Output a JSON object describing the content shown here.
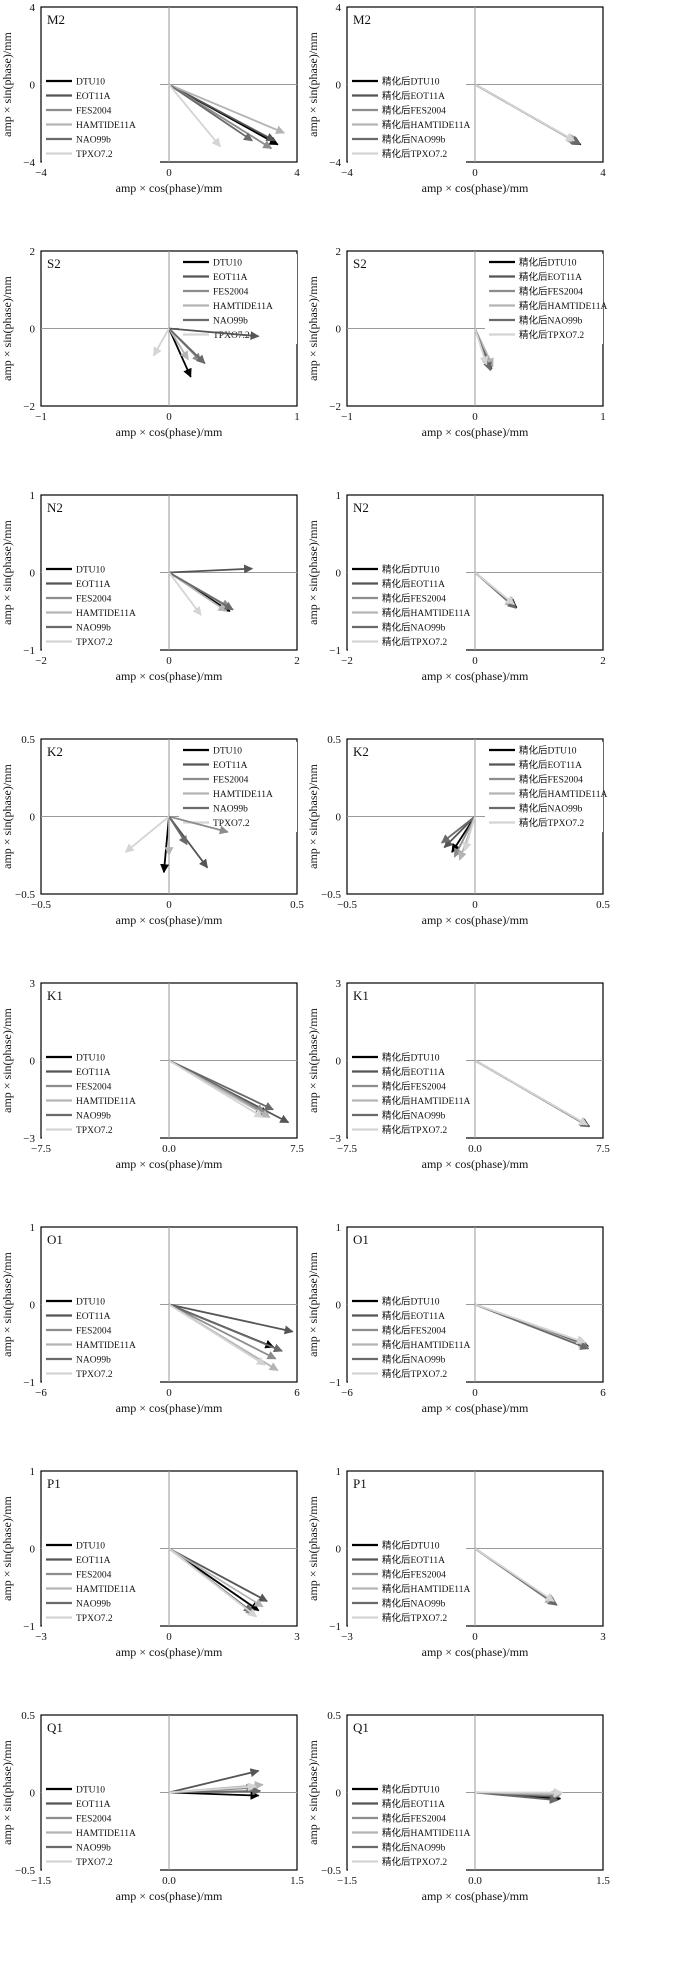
{
  "figure": {
    "y_label": "amp × sin(phase)/mm",
    "x_label": "amp × cos(phase)/mm"
  },
  "legends": {
    "original": [
      "DTU10",
      "EOT11A",
      "FES2004",
      "HAMTIDE11A",
      "NAO99b",
      "TPXO7.2"
    ],
    "refined": [
      "精化后DTU10",
      "精化后EOT11A",
      "精化后FES2004",
      "精化后HAMTIDE11A",
      "精化后NAO99b",
      "精化后TPXO7.2"
    ]
  },
  "series_colors": [
    "#000000",
    "#555555",
    "#8c8c8c",
    "#b4b4b4",
    "#6a6a6a",
    "#d4d4d4"
  ],
  "chart_data": [
    {
      "type": "scatter",
      "variant": "original",
      "title": "M2",
      "xlim": [
        -4,
        4
      ],
      "ylim": [
        -4,
        4
      ],
      "xticks": [
        "−4",
        "0",
        "4"
      ],
      "yticks": [
        "4",
        "0",
        "−4"
      ],
      "legend_position": "lower-left",
      "series": [
        {
          "name": "DTU10",
          "x": 3.4,
          "y": -3.1
        },
        {
          "name": "EOT11A",
          "x": 3.3,
          "y": -2.9
        },
        {
          "name": "FES2004",
          "x": 3.2,
          "y": -3.3
        },
        {
          "name": "HAMTIDE11A",
          "x": 3.6,
          "y": -2.5
        },
        {
          "name": "NAO99b",
          "x": 2.6,
          "y": -2.9
        },
        {
          "name": "TPXO7.2",
          "x": 1.6,
          "y": -3.2
        }
      ]
    },
    {
      "type": "scatter",
      "variant": "refined",
      "title": "M2",
      "xlim": [
        -4,
        4
      ],
      "ylim": [
        -4,
        4
      ],
      "xticks": [
        "−4",
        "0",
        "4"
      ],
      "yticks": [
        "4",
        "0",
        "−4"
      ],
      "legend_position": "lower-left",
      "series": [
        {
          "name": "精化后DTU10",
          "x": 3.3,
          "y": -3.1
        },
        {
          "name": "精化后EOT11A",
          "x": 3.25,
          "y": -3.05
        },
        {
          "name": "精化后FES2004",
          "x": 3.2,
          "y": -3.0
        },
        {
          "name": "精化后HAMTIDE11A",
          "x": 3.15,
          "y": -2.95
        },
        {
          "name": "精化后NAO99b",
          "x": 3.28,
          "y": -3.08
        },
        {
          "name": "精化后TPXO7.2",
          "x": 3.1,
          "y": -2.9
        }
      ]
    },
    {
      "type": "scatter",
      "variant": "original",
      "title": "S2",
      "xlim": [
        -1,
        1
      ],
      "ylim": [
        -2,
        2
      ],
      "xticks": [
        "−1",
        "0",
        "1"
      ],
      "yticks": [
        "2",
        "0",
        "−2"
      ],
      "legend_position": "upper-right",
      "series": [
        {
          "name": "DTU10",
          "x": 0.17,
          "y": -1.25
        },
        {
          "name": "EOT11A",
          "x": 0.7,
          "y": -0.2
        },
        {
          "name": "FES2004",
          "x": 0.25,
          "y": -0.85
        },
        {
          "name": "HAMTIDE11A",
          "x": 0.15,
          "y": -0.8
        },
        {
          "name": "NAO99b",
          "x": 0.28,
          "y": -0.9
        },
        {
          "name": "TPXO7.2",
          "x": -0.12,
          "y": -0.7
        }
      ]
    },
    {
      "type": "scatter",
      "variant": "refined",
      "title": "S2",
      "xlim": [
        -1,
        1
      ],
      "ylim": [
        -2,
        2
      ],
      "xticks": [
        "−1",
        "0",
        "1"
      ],
      "yticks": [
        "2",
        "0",
        "−2"
      ],
      "legend_position": "upper-right",
      "series": [
        {
          "name": "精化后DTU10",
          "x": 0.1,
          "y": -0.95
        },
        {
          "name": "精化后EOT11A",
          "x": 0.13,
          "y": -1.05
        },
        {
          "name": "精化后FES2004",
          "x": 0.11,
          "y": -1.0
        },
        {
          "name": "精化后HAMTIDE11A",
          "x": 0.14,
          "y": -0.98
        },
        {
          "name": "精化后NAO99b",
          "x": 0.12,
          "y": -1.08
        },
        {
          "name": "精化后TPXO7.2",
          "x": 0.09,
          "y": -0.93
        }
      ]
    },
    {
      "type": "scatter",
      "variant": "original",
      "title": "N2",
      "xlim": [
        -2,
        2
      ],
      "ylim": [
        -1,
        1
      ],
      "xticks": [
        "−2",
        "0",
        "2"
      ],
      "yticks": [
        "1",
        "0",
        "−1"
      ],
      "legend_position": "lower-left",
      "series": [
        {
          "name": "DTU10",
          "x": 0.95,
          "y": -0.5
        },
        {
          "name": "EOT11A",
          "x": 1.3,
          "y": 0.05
        },
        {
          "name": "FES2004",
          "x": 0.95,
          "y": -0.45
        },
        {
          "name": "HAMTIDE11A",
          "x": 0.9,
          "y": -0.5
        },
        {
          "name": "NAO99b",
          "x": 1.0,
          "y": -0.48
        },
        {
          "name": "TPXO7.2",
          "x": 0.5,
          "y": -0.55
        }
      ]
    },
    {
      "type": "scatter",
      "variant": "refined",
      "title": "N2",
      "xlim": [
        -2,
        2
      ],
      "ylim": [
        -1,
        1
      ],
      "xticks": [
        "−2",
        "0",
        "2"
      ],
      "yticks": [
        "1",
        "0",
        "−1"
      ],
      "legend_position": "lower-left",
      "series": [
        {
          "name": "精化后DTU10",
          "x": 0.65,
          "y": -0.45
        },
        {
          "name": "精化后EOT11A",
          "x": 0.63,
          "y": -0.43
        },
        {
          "name": "精化后FES2004",
          "x": 0.62,
          "y": -0.42
        },
        {
          "name": "精化后HAMTIDE11A",
          "x": 0.6,
          "y": -0.44
        },
        {
          "name": "精化后NAO99b",
          "x": 0.64,
          "y": -0.46
        },
        {
          "name": "精化后TPXO7.2",
          "x": 0.61,
          "y": -0.41
        }
      ]
    },
    {
      "type": "scatter",
      "variant": "original",
      "title": "K2",
      "xlim": [
        -0.5,
        0.5
      ],
      "ylim": [
        -0.5,
        0.5
      ],
      "xticks": [
        "−0.5",
        "0",
        "0.5"
      ],
      "yticks": [
        "0.5",
        "0",
        "−0.5"
      ],
      "legend_position": "upper-right",
      "series": [
        {
          "name": "DTU10",
          "x": -0.02,
          "y": -0.36
        },
        {
          "name": "EOT11A",
          "x": 0.15,
          "y": -0.33
        },
        {
          "name": "FES2004",
          "x": 0.23,
          "y": -0.1
        },
        {
          "name": "HAMTIDE11A",
          "x": 0.0,
          "y": -0.25
        },
        {
          "name": "NAO99b",
          "x": 0.07,
          "y": -0.18
        },
        {
          "name": "TPXO7.2",
          "x": -0.17,
          "y": -0.23
        }
      ]
    },
    {
      "type": "scatter",
      "variant": "refined",
      "title": "K2",
      "xlim": [
        -0.5,
        0.5
      ],
      "ylim": [
        -0.5,
        0.5
      ],
      "xticks": [
        "−0.5",
        "0",
        "0.5"
      ],
      "yticks": [
        "0.5",
        "0",
        "−0.5"
      ],
      "legend_position": "upper-right",
      "series": [
        {
          "name": "精化后DTU10",
          "x": -0.09,
          "y": -0.23
        },
        {
          "name": "精化后EOT11A",
          "x": -0.12,
          "y": -0.2
        },
        {
          "name": "精化后FES2004",
          "x": -0.08,
          "y": -0.26
        },
        {
          "name": "精化后HAMTIDE11A",
          "x": -0.06,
          "y": -0.28
        },
        {
          "name": "精化后NAO99b",
          "x": -0.13,
          "y": -0.17
        },
        {
          "name": "精化后TPXO7.2",
          "x": -0.04,
          "y": -0.22
        }
      ]
    },
    {
      "type": "scatter",
      "variant": "original",
      "title": "K1",
      "xlim": [
        -7.5,
        7.5
      ],
      "ylim": [
        -3,
        3
      ],
      "xticks": [
        "−7.5",
        "0.0",
        "7.5"
      ],
      "yticks": [
        "3",
        "0",
        "−3"
      ],
      "legend_position": "lower-left",
      "series": [
        {
          "name": "DTU10",
          "x": 5.8,
          "y": -2.1
        },
        {
          "name": "EOT11A",
          "x": 7.0,
          "y": -2.4
        },
        {
          "name": "FES2004",
          "x": 5.6,
          "y": -2.0
        },
        {
          "name": "HAMTIDE11A",
          "x": 5.9,
          "y": -2.2
        },
        {
          "name": "NAO99b",
          "x": 6.1,
          "y": -1.9
        },
        {
          "name": "TPXO7.2",
          "x": 5.5,
          "y": -2.2
        }
      ]
    },
    {
      "type": "scatter",
      "variant": "refined",
      "title": "K1",
      "xlim": [
        -7.5,
        7.5
      ],
      "ylim": [
        -3,
        3
      ],
      "xticks": [
        "−7.5",
        "0.0",
        "7.5"
      ],
      "yticks": [
        "3",
        "0",
        "−3"
      ],
      "legend_position": "lower-left",
      "series": [
        {
          "name": "精化后DTU10",
          "x": 6.7,
          "y": -2.55
        },
        {
          "name": "精化后EOT11A",
          "x": 6.65,
          "y": -2.53
        },
        {
          "name": "精化后FES2004",
          "x": 6.6,
          "y": -2.5
        },
        {
          "name": "精化后HAMTIDE11A",
          "x": 6.62,
          "y": -2.52
        },
        {
          "name": "精化后NAO99b",
          "x": 6.68,
          "y": -2.56
        },
        {
          "name": "精化后TPXO7.2",
          "x": 6.58,
          "y": -2.49
        }
      ]
    },
    {
      "type": "scatter",
      "variant": "original",
      "title": "O1",
      "xlim": [
        -6,
        6
      ],
      "ylim": [
        -1,
        1
      ],
      "xticks": [
        "−6",
        "0",
        "6"
      ],
      "yticks": [
        "1",
        "0",
        "−1"
      ],
      "legend_position": "lower-left",
      "series": [
        {
          "name": "DTU10",
          "x": 4.9,
          "y": -0.55
        },
        {
          "name": "EOT11A",
          "x": 5.8,
          "y": -0.35
        },
        {
          "name": "FES2004",
          "x": 5.0,
          "y": -0.7
        },
        {
          "name": "HAMTIDE11A",
          "x": 5.1,
          "y": -0.85
        },
        {
          "name": "NAO99b",
          "x": 5.3,
          "y": -0.6
        },
        {
          "name": "TPXO7.2",
          "x": 4.5,
          "y": -0.78
        }
      ]
    },
    {
      "type": "scatter",
      "variant": "refined",
      "title": "O1",
      "xlim": [
        -6,
        6
      ],
      "ylim": [
        -1,
        1
      ],
      "xticks": [
        "−6",
        "0",
        "6"
      ],
      "yticks": [
        "1",
        "0",
        "−1"
      ],
      "legend_position": "lower-left",
      "series": [
        {
          "name": "精化后DTU10",
          "x": 5.3,
          "y": -0.54
        },
        {
          "name": "精化后EOT11A",
          "x": 5.25,
          "y": -0.52
        },
        {
          "name": "精化后FES2004",
          "x": 5.2,
          "y": -0.5
        },
        {
          "name": "精化后HAMTIDE11A",
          "x": 5.28,
          "y": -0.55
        },
        {
          "name": "精化后NAO99b",
          "x": 5.32,
          "y": -0.57
        },
        {
          "name": "精化后TPXO7.2",
          "x": 5.15,
          "y": -0.49
        }
      ]
    },
    {
      "type": "scatter",
      "variant": "original",
      "title": "P1",
      "xlim": [
        -3,
        3
      ],
      "ylim": [
        -1,
        1
      ],
      "xticks": [
        "−3",
        "0",
        "3"
      ],
      "yticks": [
        "1",
        "0",
        "−1"
      ],
      "legend_position": "lower-left",
      "series": [
        {
          "name": "DTU10",
          "x": 2.1,
          "y": -0.8
        },
        {
          "name": "EOT11A",
          "x": 2.3,
          "y": -0.68
        },
        {
          "name": "FES2004",
          "x": 2.0,
          "y": -0.85
        },
        {
          "name": "HAMTIDE11A",
          "x": 2.2,
          "y": -0.75
        },
        {
          "name": "NAO99b",
          "x": 1.95,
          "y": -0.82
        },
        {
          "name": "TPXO7.2",
          "x": 2.05,
          "y": -0.88
        }
      ]
    },
    {
      "type": "scatter",
      "variant": "refined",
      "title": "P1",
      "xlim": [
        -3,
        3
      ],
      "ylim": [
        -1,
        1
      ],
      "xticks": [
        "−3",
        "0",
        "3"
      ],
      "yticks": [
        "1",
        "0",
        "−1"
      ],
      "legend_position": "lower-left",
      "series": [
        {
          "name": "精化后DTU10",
          "x": 1.9,
          "y": -0.72
        },
        {
          "name": "精化后EOT11A",
          "x": 1.88,
          "y": -0.7
        },
        {
          "name": "精化后FES2004",
          "x": 1.86,
          "y": -0.69
        },
        {
          "name": "精化后HAMTIDE11A",
          "x": 1.84,
          "y": -0.71
        },
        {
          "name": "精化后NAO99b",
          "x": 1.92,
          "y": -0.73
        },
        {
          "name": "精化后TPXO7.2",
          "x": 1.85,
          "y": -0.68
        }
      ]
    },
    {
      "type": "scatter",
      "variant": "original",
      "title": "Q1",
      "xlim": [
        -1.5,
        1.5
      ],
      "ylim": [
        -0.5,
        0.5
      ],
      "xticks": [
        "−1.5",
        "0.0",
        "1.5"
      ],
      "yticks": [
        "0.5",
        "0",
        "−0.5"
      ],
      "legend_position": "lower-left",
      "series": [
        {
          "name": "DTU10",
          "x": 1.05,
          "y": -0.02
        },
        {
          "name": "EOT11A",
          "x": 1.05,
          "y": 0.14
        },
        {
          "name": "FES2004",
          "x": 1.0,
          "y": 0.03
        },
        {
          "name": "HAMTIDE11A",
          "x": 1.1,
          "y": 0.05
        },
        {
          "name": "NAO99b",
          "x": 1.07,
          "y": 0.01
        },
        {
          "name": "TPXO7.2",
          "x": 1.02,
          "y": 0.04
        }
      ]
    },
    {
      "type": "scatter",
      "variant": "refined",
      "title": "Q1",
      "xlim": [
        -1.5,
        1.5
      ],
      "ylim": [
        -0.5,
        0.5
      ],
      "xticks": [
        "−1.5",
        "0.0",
        "1.5"
      ],
      "yticks": [
        "0.5",
        "0",
        "−0.5"
      ],
      "legend_position": "lower-left",
      "series": [
        {
          "name": "精化后DTU10",
          "x": 1.0,
          "y": -0.04
        },
        {
          "name": "精化后EOT11A",
          "x": 0.98,
          "y": -0.03
        },
        {
          "name": "精化后FES2004",
          "x": 0.99,
          "y": -0.02
        },
        {
          "name": "精化后HAMTIDE11A",
          "x": 1.01,
          "y": -0.01
        },
        {
          "name": "精化后NAO99b",
          "x": 0.97,
          "y": -0.05
        },
        {
          "name": "精化后TPXO7.2",
          "x": 1.02,
          "y": 0.0
        }
      ]
    }
  ]
}
